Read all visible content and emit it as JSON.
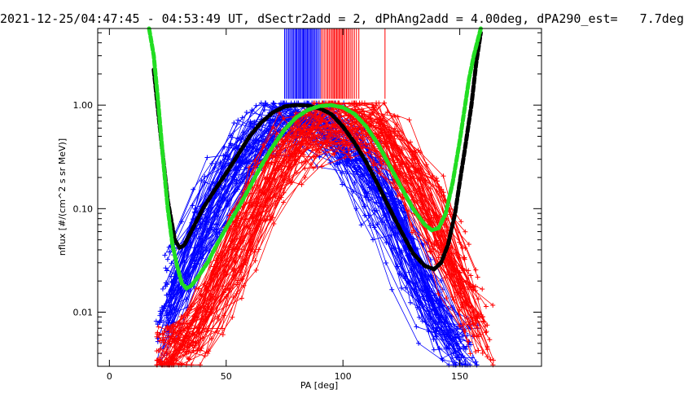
{
  "chart_data": {
    "type": "line",
    "title": "2021-12-25/04:47:45 - 04:53:49 UT, dSectr2add = 2, dPhAng2add = 4.00deg, dPA290_est=   7.7deg",
    "xlabel": "PA [deg]",
    "ylabel": "nflux [#/(cm^2 s sr MeV)]",
    "xlim": [
      -5,
      185
    ],
    "ylim": [
      0.003,
      5.5
    ],
    "yscale": "log",
    "x_ticks": [
      0,
      50,
      100,
      150
    ],
    "x_tick_labels": [
      "0",
      "50",
      "100",
      "150"
    ],
    "y_ticks": [
      0.01,
      0.1,
      1.0
    ],
    "y_tick_labels": [
      "0.01",
      "0.10",
      "1.00"
    ],
    "colors": {
      "blue": "#0000ff",
      "red": "#ff0000",
      "black_fit": "#000000",
      "green_fit": "#22dd22"
    },
    "series": [
      {
        "color": "#0000ff",
        "style": "fit",
        "x": [],
        "peak_pa": 80,
        "peak_flux": 0.97,
        "pa_range": [
          20,
          160
        ]
      },
      {
        "color": "#ff0000",
        "style": "fit",
        "x": [],
        "peak_pa": 100,
        "peak_flux": 0.95,
        "pa_range": [
          20,
          165
        ]
      },
      {
        "color": "#000000",
        "style": "dashed-thick",
        "x": [
          19,
          22,
          25,
          28,
          30,
          32,
          35,
          40,
          45,
          50,
          55,
          60,
          65,
          70,
          75,
          80,
          85,
          90,
          95,
          100,
          105,
          110,
          115,
          120,
          125,
          130,
          135,
          139,
          142,
          145,
          148,
          150,
          152,
          155,
          157,
          159
        ],
        "y": [
          2.2,
          0.5,
          0.12,
          0.05,
          0.042,
          0.044,
          0.06,
          0.1,
          0.15,
          0.22,
          0.33,
          0.5,
          0.68,
          0.85,
          0.97,
          1.0,
          0.99,
          0.93,
          0.82,
          0.62,
          0.43,
          0.28,
          0.17,
          0.1,
          0.06,
          0.037,
          0.028,
          0.026,
          0.03,
          0.045,
          0.09,
          0.18,
          0.35,
          1.0,
          2.5,
          5.0
        ]
      },
      {
        "color": "#22dd22",
        "style": "dashed-thick",
        "x": [
          17,
          19,
          21,
          23,
          25,
          27,
          29,
          31,
          33,
          35,
          38,
          42,
          46,
          50,
          55,
          60,
          65,
          70,
          75,
          80,
          85,
          90,
          95,
          100,
          105,
          110,
          115,
          120,
          125,
          130,
          135,
          138,
          141,
          144,
          147,
          150,
          152,
          154,
          156,
          158,
          159
        ],
        "y": [
          6.0,
          3.0,
          1.0,
          0.3,
          0.1,
          0.045,
          0.028,
          0.019,
          0.017,
          0.018,
          0.022,
          0.03,
          0.045,
          0.065,
          0.1,
          0.16,
          0.26,
          0.4,
          0.58,
          0.76,
          0.9,
          0.98,
          1.0,
          0.95,
          0.82,
          0.62,
          0.42,
          0.26,
          0.16,
          0.1,
          0.07,
          0.062,
          0.065,
          0.09,
          0.18,
          0.45,
          0.9,
          1.8,
          3.0,
          4.5,
          6.0
        ]
      }
    ],
    "blue_marker_pa": [
      75.0,
      75.6,
      76.2,
      76.8,
      77.3,
      77.9,
      78.4,
      78.9,
      79.4,
      79.9,
      80.3,
      80.8,
      81.2,
      81.7,
      82.1,
      82.6,
      83.0,
      83.4,
      83.9,
      84.3,
      84.8,
      85.2,
      85.7,
      86.1,
      86.6,
      87.0,
      87.5,
      88.0,
      88.5,
      89.0,
      89.6,
      90.2
    ],
    "red_marker_pa": [
      90.8,
      91.5,
      92.2,
      92.9,
      93.5,
      94.1,
      94.7,
      95.3,
      95.8,
      96.3,
      96.8,
      97.3,
      97.8,
      98.3,
      98.8,
      99.3,
      99.8,
      100.3,
      100.9,
      101.5,
      102.1,
      102.7,
      103.4,
      104.1,
      104.9,
      105.8,
      106.8,
      118.0
    ]
  }
}
